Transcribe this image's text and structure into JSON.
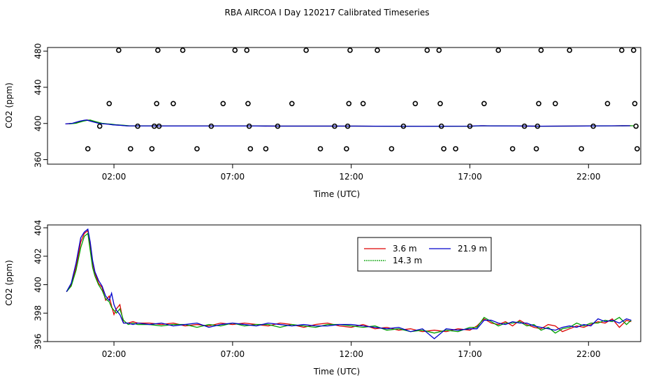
{
  "title": "RBA AIRCOA I  Day 120217  Calibrated Timeseries",
  "chart_data": [
    {
      "type": "scatter",
      "xlabel": "Time (UTC)",
      "ylabel": "CO2 (ppm)",
      "xlim": [
        -0.8,
        24.2
      ],
      "ylim": [
        355,
        484
      ],
      "xticks": [
        2,
        7,
        12,
        17,
        22
      ],
      "xtick_labels": [
        "02:00",
        "07:00",
        "12:00",
        "17:00",
        "22:00"
      ],
      "yticks": [
        360,
        400,
        440,
        480
      ],
      "ytick_labels": [
        "360",
        "400",
        "440",
        "480"
      ],
      "points": {
        "x": [
          0.9,
          1.4,
          1.8,
          2.2,
          2.7,
          3.0,
          3.6,
          3.7,
          3.8,
          3.85,
          3.9,
          4.5,
          4.9,
          5.5,
          6.1,
          6.6,
          7.1,
          7.6,
          7.65,
          7.7,
          7.75,
          8.4,
          8.9,
          9.5,
          10.1,
          10.7,
          11.3,
          11.8,
          11.85,
          11.9,
          11.95,
          12.5,
          13.1,
          13.7,
          14.2,
          14.7,
          15.2,
          15.7,
          15.75,
          15.8,
          15.9,
          16.4,
          17.0,
          17.6,
          18.2,
          18.8,
          19.3,
          19.8,
          19.85,
          19.9,
          20.0,
          20.6,
          21.2,
          21.7,
          22.2,
          22.8,
          23.4,
          23.9,
          23.95,
          24.0,
          24.05
        ],
        "y": [
          372,
          397,
          422,
          481,
          372,
          397,
          372,
          397,
          422,
          481,
          397,
          422,
          481,
          372,
          397,
          422,
          481,
          481,
          422,
          397,
          372,
          372,
          397,
          422,
          481,
          372,
          397,
          372,
          397,
          422,
          481,
          422,
          481,
          372,
          397,
          422,
          481,
          481,
          422,
          397,
          372,
          372,
          397,
          422,
          481,
          372,
          397,
          372,
          397,
          422,
          481,
          422,
          481,
          372,
          397,
          422,
          481,
          481,
          422,
          397,
          372
        ]
      },
      "series": [
        {
          "name": "3.6 m",
          "color": "#dd0000",
          "shift": 0.0,
          "amp": 0.0
        },
        {
          "name": "14.3 m",
          "color": "#00a000",
          "shift": 0.1,
          "amp": 0.0
        },
        {
          "name": "21.9 m",
          "color": "#0000cc",
          "shift": -0.05,
          "amp": 0.0
        }
      ],
      "x": [
        0.0,
        0.3,
        0.6,
        0.8,
        0.9,
        1.0,
        1.2,
        1.4,
        1.6,
        1.8,
        2.0,
        2.3,
        2.6,
        3.0,
        4.0,
        5.0,
        6.0,
        7.0,
        8.0,
        9.0,
        10.0,
        11.0,
        12.0,
        13.0,
        14.0,
        15.0,
        16.0,
        17.0,
        17.5,
        18.0,
        19.0,
        20.0,
        21.0,
        22.0,
        23.0,
        23.8
      ],
      "y": [
        399.5,
        400.2,
        402.5,
        403.6,
        403.8,
        403.0,
        401.5,
        400.2,
        399.6,
        399.2,
        398.5,
        398.0,
        397.3,
        397.3,
        397.2,
        397.2,
        397.2,
        397.2,
        397.2,
        397.1,
        397.1,
        397.1,
        397.1,
        397.0,
        396.9,
        396.8,
        396.9,
        397.0,
        397.5,
        397.3,
        397.2,
        397.0,
        397.1,
        397.2,
        397.4,
        397.5
      ]
    },
    {
      "type": "line",
      "xlabel": "Time (UTC)",
      "ylabel": "CO2 (ppm)",
      "xlim": [
        -0.8,
        24.2
      ],
      "ylim": [
        396,
        404.2
      ],
      "xticks": [
        2,
        7,
        12,
        17,
        22
      ],
      "xtick_labels": [
        "02:00",
        "07:00",
        "12:00",
        "17:00",
        "22:00"
      ],
      "yticks": [
        396,
        398,
        400,
        402,
        404
      ],
      "ytick_labels": [
        "396",
        "398",
        "400",
        "402",
        "404"
      ],
      "legend": "top-center",
      "x": [
        0.0,
        0.2,
        0.4,
        0.6,
        0.75,
        0.9,
        1.0,
        1.1,
        1.2,
        1.35,
        1.5,
        1.65,
        1.8,
        1.9,
        2.0,
        2.1,
        2.25,
        2.4,
        2.6,
        2.8,
        3.0,
        3.5,
        4.0,
        4.5,
        5.0,
        5.5,
        6.0,
        6.5,
        7.0,
        7.5,
        8.0,
        8.5,
        9.0,
        9.5,
        10.0,
        10.5,
        11.0,
        11.5,
        12.0,
        12.5,
        13.0,
        13.5,
        14.0,
        14.5,
        15.0,
        15.5,
        16.0,
        16.5,
        17.0,
        17.3,
        17.6,
        17.9,
        18.2,
        18.5,
        18.8,
        19.1,
        19.4,
        19.7,
        20.0,
        20.3,
        20.6,
        20.9,
        21.2,
        21.5,
        21.8,
        22.1,
        22.4,
        22.7,
        23.0,
        23.3,
        23.6,
        23.8
      ],
      "series": [
        {
          "name": "3.6 m",
          "color": "#dd0000",
          "y": [
            399.5,
            400.0,
            401.2,
            403.0,
            403.6,
            403.8,
            402.8,
            401.5,
            400.8,
            400.1,
            399.8,
            398.9,
            399.2,
            398.5,
            397.9,
            398.3,
            398.6,
            397.3,
            397.3,
            397.4,
            397.3,
            397.3,
            397.2,
            397.3,
            397.1,
            397.2,
            397.1,
            397.3,
            397.2,
            397.3,
            397.2,
            397.1,
            397.3,
            397.2,
            397.0,
            397.2,
            397.3,
            397.1,
            397.0,
            397.2,
            396.9,
            397.0,
            396.8,
            396.9,
            396.7,
            396.8,
            396.7,
            396.9,
            396.8,
            397.1,
            397.6,
            397.3,
            397.2,
            397.4,
            397.1,
            397.5,
            397.2,
            397.0,
            396.9,
            397.2,
            397.1,
            396.7,
            396.9,
            397.1,
            397.0,
            397.2,
            397.4,
            397.3,
            397.6,
            397.0,
            397.5,
            397.4
          ]
        },
        {
          "name": "14.3 m",
          "color": "#00a000",
          "y": [
            399.5,
            399.9,
            401.0,
            402.6,
            403.4,
            403.6,
            402.4,
            401.2,
            400.6,
            400.0,
            399.6,
            399.0,
            398.8,
            398.4,
            398.2,
            398.0,
            398.3,
            397.5,
            397.2,
            397.3,
            397.2,
            397.2,
            397.1,
            397.2,
            397.2,
            397.0,
            397.2,
            397.1,
            397.3,
            397.1,
            397.2,
            397.2,
            397.0,
            397.2,
            397.1,
            397.0,
            397.2,
            397.2,
            397.1,
            397.0,
            397.1,
            396.8,
            396.9,
            396.7,
            396.8,
            396.6,
            396.8,
            396.7,
            397.0,
            397.0,
            397.7,
            397.4,
            397.1,
            397.3,
            397.3,
            397.4,
            397.1,
            397.2,
            396.8,
            397.0,
            396.6,
            396.9,
            397.0,
            397.3,
            397.1,
            397.3,
            397.3,
            397.5,
            397.4,
            397.7,
            397.2,
            397.5
          ]
        },
        {
          "name": "21.9 m",
          "color": "#0000cc",
          "y": [
            399.5,
            400.1,
            401.5,
            403.3,
            403.7,
            403.9,
            403.0,
            401.7,
            400.9,
            400.3,
            399.9,
            399.2,
            398.9,
            399.4,
            398.6,
            398.2,
            397.9,
            397.3,
            397.3,
            397.2,
            397.3,
            397.2,
            397.3,
            397.1,
            397.2,
            397.3,
            397.0,
            397.2,
            397.3,
            397.2,
            397.1,
            397.3,
            397.2,
            397.1,
            397.2,
            397.1,
            397.1,
            397.2,
            397.2,
            397.1,
            397.0,
            396.9,
            397.0,
            396.7,
            396.9,
            396.2,
            396.9,
            396.8,
            396.9,
            396.9,
            397.5,
            397.5,
            397.3,
            397.2,
            397.4,
            397.3,
            397.3,
            397.1,
            397.0,
            396.9,
            396.8,
            397.0,
            397.1,
            397.0,
            397.2,
            397.1,
            397.6,
            397.4,
            397.5,
            397.3,
            397.6,
            397.5
          ]
        }
      ]
    }
  ]
}
